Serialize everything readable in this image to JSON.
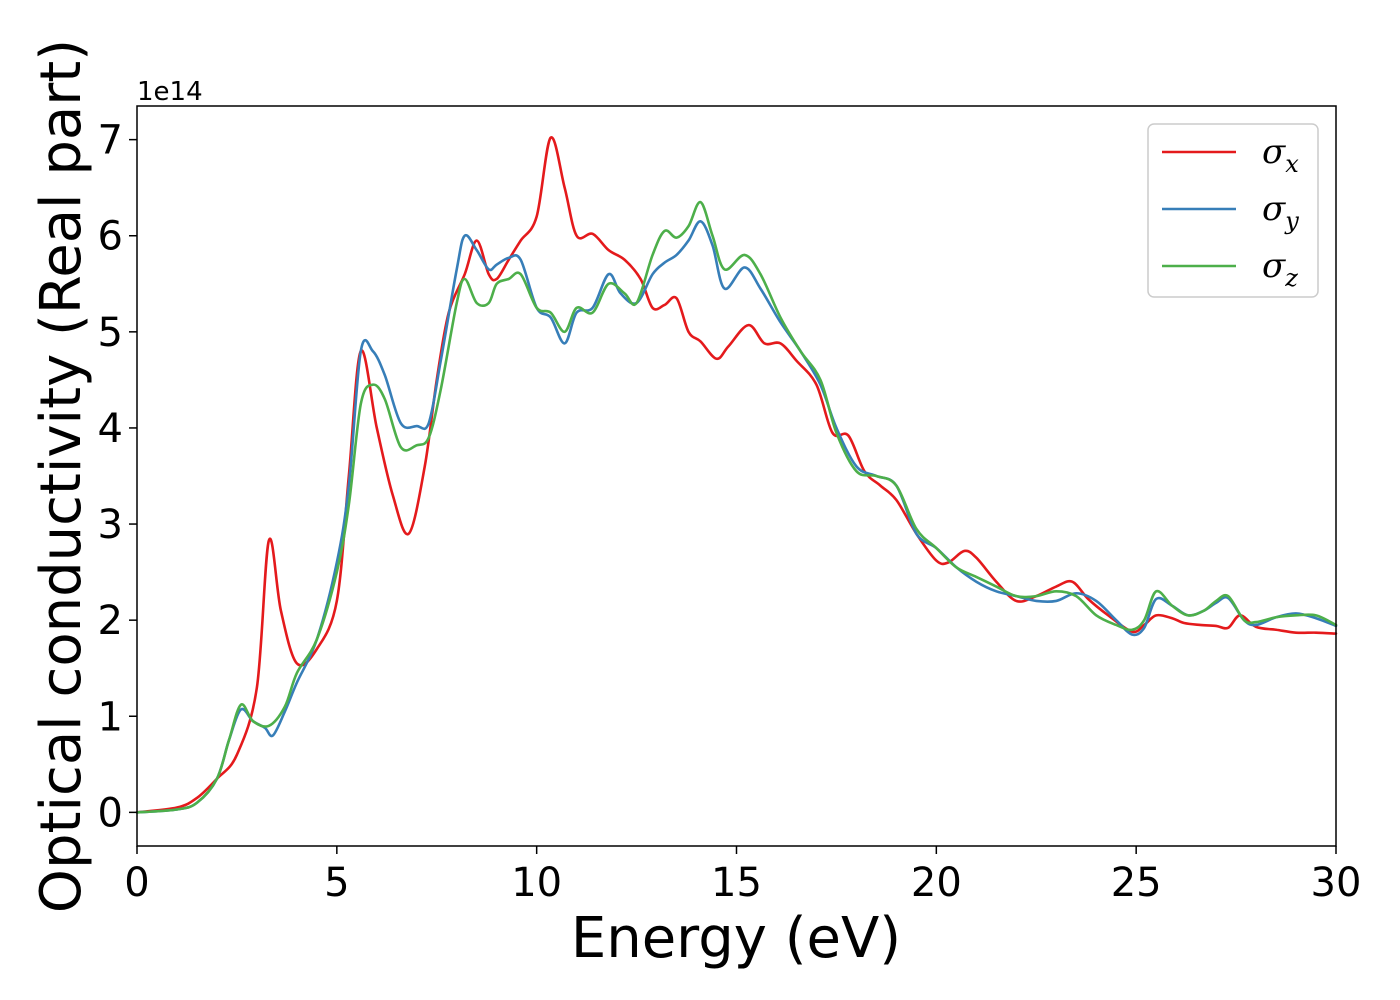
{
  "chart_data": {
    "type": "line",
    "xlabel": "Energy (eV)",
    "ylabel": "Optical conductivity (Real part)",
    "offset_text": "1e14",
    "xlim": [
      0,
      30
    ],
    "ylim": [
      -0.35,
      7.35
    ],
    "x_ticks": [
      0,
      5,
      10,
      15,
      20,
      25,
      30
    ],
    "y_ticks": [
      0,
      1,
      2,
      3,
      4,
      5,
      6,
      7
    ],
    "legend_position": "top-right",
    "grid": false,
    "series": [
      {
        "name": "σx",
        "label_symbol": "σ",
        "label_sub": "x",
        "color": "#e41a1c",
        "x": [
          0,
          1,
          1.5,
          2,
          2.5,
          3,
          3.3,
          3.6,
          4,
          4.5,
          5,
          5.3,
          5.6,
          6,
          6.4,
          6.8,
          7.2,
          7.5,
          7.8,
          8.2,
          8.5,
          8.8,
          9,
          9.3,
          9.6,
          10,
          10.35,
          10.7,
          11,
          11.4,
          11.8,
          12.2,
          12.6,
          12.9,
          13.2,
          13.5,
          13.8,
          14.1,
          14.5,
          14.8,
          15.3,
          15.7,
          16.1,
          16.5,
          17,
          17.4,
          17.8,
          18.2,
          18.6,
          19,
          19.5,
          20,
          20.3,
          20.7,
          21,
          21.5,
          22,
          22.5,
          23,
          23.4,
          23.8,
          24.3,
          24.9,
          25.2,
          25.5,
          25.9,
          26.2,
          26.6,
          27,
          27.3,
          27.6,
          28,
          28.5,
          29,
          29.5,
          30
        ],
        "values": [
          0,
          0.05,
          0.15,
          0.35,
          0.6,
          1.3,
          2.83,
          2.1,
          1.55,
          1.7,
          2.2,
          3.5,
          4.8,
          4.0,
          3.3,
          2.9,
          3.6,
          4.5,
          5.2,
          5.6,
          5.95,
          5.6,
          5.55,
          5.75,
          5.95,
          6.2,
          7.02,
          6.5,
          6.0,
          6.02,
          5.85,
          5.75,
          5.55,
          5.25,
          5.28,
          5.35,
          5.0,
          4.9,
          4.72,
          4.85,
          5.07,
          4.88,
          4.88,
          4.7,
          4.45,
          3.95,
          3.92,
          3.55,
          3.4,
          3.25,
          2.9,
          2.62,
          2.6,
          2.72,
          2.65,
          2.4,
          2.2,
          2.25,
          2.35,
          2.4,
          2.22,
          2.05,
          1.88,
          1.95,
          2.05,
          2.02,
          1.97,
          1.95,
          1.94,
          1.92,
          2.05,
          1.93,
          1.9,
          1.87,
          1.87,
          1.86
        ]
      },
      {
        "name": "σy",
        "label_symbol": "σ",
        "label_sub": "y",
        "color": "#377eb8",
        "x": [
          0,
          1,
          1.5,
          2,
          2.3,
          2.6,
          2.9,
          3.2,
          3.4,
          3.7,
          4,
          4.5,
          5,
          5.3,
          5.6,
          5.9,
          6.2,
          6.6,
          7,
          7.3,
          7.6,
          8,
          8.2,
          8.5,
          8.8,
          9,
          9.3,
          9.6,
          10,
          10.35,
          10.7,
          11,
          11.4,
          11.8,
          12.1,
          12.5,
          12.9,
          13.2,
          13.5,
          13.8,
          14.1,
          14.4,
          14.7,
          15.2,
          15.6,
          16.1,
          16.6,
          17.1,
          17.5,
          18,
          18.5,
          19,
          19.5,
          20,
          20.5,
          21,
          21.5,
          22,
          22.5,
          23,
          23.5,
          24,
          24.5,
          24.9,
          25.2,
          25.5,
          25.9,
          26.3,
          26.7,
          27,
          27.3,
          27.7,
          28,
          28.5,
          29,
          29.5,
          30
        ],
        "values": [
          0,
          0.03,
          0.1,
          0.35,
          0.75,
          1.07,
          0.95,
          0.88,
          0.8,
          1.05,
          1.35,
          1.8,
          2.6,
          3.4,
          4.8,
          4.8,
          4.55,
          4.05,
          4.02,
          4.05,
          4.7,
          5.65,
          6.0,
          5.85,
          5.65,
          5.7,
          5.77,
          5.75,
          5.25,
          5.15,
          4.88,
          5.2,
          5.25,
          5.6,
          5.4,
          5.3,
          5.6,
          5.72,
          5.8,
          5.95,
          6.15,
          5.9,
          5.45,
          5.67,
          5.45,
          5.1,
          4.8,
          4.45,
          4.0,
          3.6,
          3.5,
          3.4,
          2.9,
          2.75,
          2.55,
          2.4,
          2.3,
          2.25,
          2.2,
          2.2,
          2.28,
          2.2,
          2.0,
          1.85,
          1.92,
          2.22,
          2.15,
          2.05,
          2.1,
          2.18,
          2.23,
          2.0,
          1.95,
          2.03,
          2.07,
          2.02,
          1.94
        ]
      },
      {
        "name": "σz",
        "label_symbol": "σ",
        "label_sub": "z",
        "color": "#4daf4a",
        "x": [
          0,
          1,
          1.5,
          2,
          2.3,
          2.6,
          2.9,
          3.3,
          3.7,
          4,
          4.5,
          5,
          5.3,
          5.6,
          5.9,
          6.2,
          6.6,
          7,
          7.3,
          7.6,
          8,
          8.2,
          8.5,
          8.8,
          9,
          9.3,
          9.6,
          10,
          10.35,
          10.7,
          11,
          11.4,
          11.8,
          12.2,
          12.5,
          12.9,
          13.2,
          13.5,
          13.8,
          14.1,
          14.4,
          14.7,
          15.2,
          15.6,
          16.1,
          16.6,
          17.1,
          17.5,
          18,
          18.5,
          19,
          19.5,
          20,
          20.5,
          21,
          21.5,
          22,
          22.5,
          23,
          23.5,
          24,
          24.5,
          24.9,
          25.2,
          25.5,
          25.9,
          26.3,
          26.7,
          27,
          27.3,
          27.7,
          28,
          28.5,
          29,
          29.5,
          30
        ],
        "values": [
          0,
          0.03,
          0.1,
          0.35,
          0.75,
          1.12,
          0.95,
          0.9,
          1.1,
          1.45,
          1.8,
          2.5,
          3.2,
          4.25,
          4.45,
          4.3,
          3.8,
          3.82,
          3.9,
          4.4,
          5.3,
          5.55,
          5.3,
          5.3,
          5.5,
          5.55,
          5.6,
          5.25,
          5.2,
          5.0,
          5.25,
          5.2,
          5.5,
          5.4,
          5.3,
          5.8,
          6.05,
          5.98,
          6.1,
          6.35,
          6.0,
          5.65,
          5.8,
          5.6,
          5.15,
          4.8,
          4.5,
          3.95,
          3.55,
          3.5,
          3.4,
          2.95,
          2.75,
          2.55,
          2.45,
          2.35,
          2.25,
          2.25,
          2.3,
          2.25,
          2.05,
          1.95,
          1.9,
          2.0,
          2.3,
          2.15,
          2.05,
          2.1,
          2.2,
          2.25,
          2.0,
          1.98,
          2.03,
          2.05,
          2.05,
          1.95
        ]
      }
    ]
  }
}
